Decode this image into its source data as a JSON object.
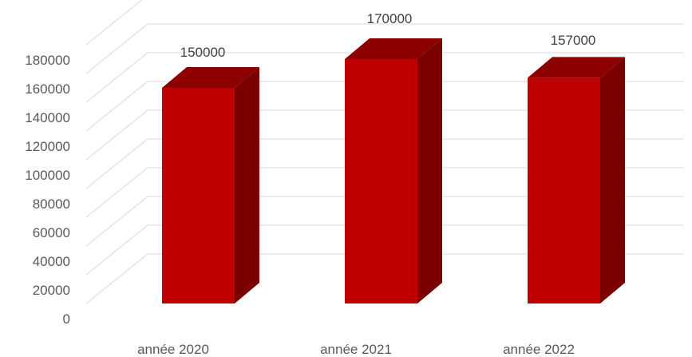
{
  "chart_data": {
    "type": "bar",
    "style": "3d-column",
    "categories": [
      "année 2020",
      "année 2021",
      "année 2022"
    ],
    "values": [
      150000,
      170000,
      157000
    ],
    "data_labels": [
      "150000",
      "170000",
      "157000"
    ],
    "ylim": [
      0,
      180000
    ],
    "ytick_step": 20000,
    "yticks": [
      "0",
      "20000",
      "40000",
      "60000",
      "80000",
      "100000",
      "120000",
      "140000",
      "160000",
      "180000"
    ],
    "grid": true,
    "legend": "none",
    "colors": {
      "front": "#c00000",
      "side": "#7b0000",
      "top": "#8c0000",
      "grid": "#d9d9d9",
      "text": "#595959"
    }
  }
}
